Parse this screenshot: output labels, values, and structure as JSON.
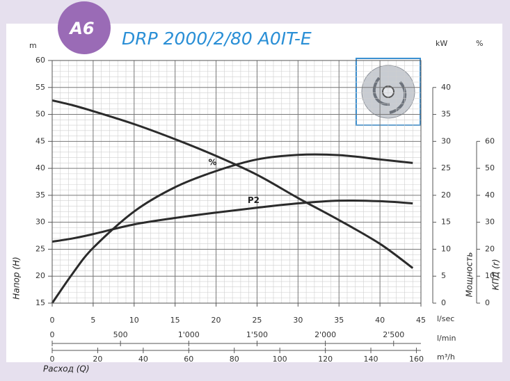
{
  "badge": "A6",
  "chart_data": {
    "type": "line",
    "title": "DRP 2000/2/80 A0IT-E",
    "x": [
      0,
      2.5,
      5,
      10,
      15,
      20,
      25,
      30,
      35,
      40,
      44
    ],
    "xlim": [
      0,
      45
    ],
    "xticks": [
      0,
      5,
      10,
      15,
      20,
      25,
      30,
      35,
      40,
      45
    ],
    "x_unit": "l/sec",
    "x2lim": [
      0,
      2700
    ],
    "x2ticks": [
      0,
      500,
      {
        "value": 1000,
        "label": "1'000"
      },
      {
        "value": 1500,
        "label": "1'500"
      },
      {
        "value": 2000,
        "label": "2'000"
      },
      {
        "value": 2500,
        "label": "2'500"
      }
    ],
    "x2_unit": "l/min",
    "x3lim": [
      0,
      162
    ],
    "x3ticks": [
      0,
      20,
      40,
      60,
      80,
      100,
      120,
      140,
      160
    ],
    "x3_unit": "m³/h",
    "xlabel": "Расход (Q)",
    "ylabel": "Напор (H)",
    "y_unit": "m",
    "ylim": [
      15,
      60
    ],
    "yticks": [
      15,
      20,
      25,
      30,
      35,
      40,
      45,
      50,
      55,
      60
    ],
    "y2label": "Мощность",
    "y2_unit": "kW",
    "y2lim": [
      0,
      45
    ],
    "y2ticks": [
      0,
      5,
      10,
      15,
      20,
      25,
      30,
      35,
      40
    ],
    "y3label": "КПД (r)",
    "y3_unit": "%",
    "y3lim": [
      0,
      90
    ],
    "y3ticks": [
      0,
      10,
      20,
      30,
      40,
      50,
      60
    ],
    "grid": true,
    "series": [
      {
        "color": "#2b2b2b",
        "axis": "y",
        "values": [
          52.6,
          51.7,
          50.6,
          48.2,
          45.4,
          42.3,
          38.8,
          34.5,
          30.4,
          26.0,
          21.5
        ]
      },
      {
        "name": "P2",
        "color": "#2b2b2b",
        "axis": "y2",
        "values": [
          11.4,
          12.0,
          12.8,
          14.6,
          15.8,
          16.8,
          17.7,
          18.5,
          19.0,
          18.9,
          18.5
        ]
      },
      {
        "name": "%",
        "color": "#2b2b2b",
        "axis": "y3",
        "values": [
          0,
          11,
          20.5,
          34,
          43,
          49,
          53.3,
          55,
          54.9,
          53.3,
          52
        ]
      }
    ]
  }
}
